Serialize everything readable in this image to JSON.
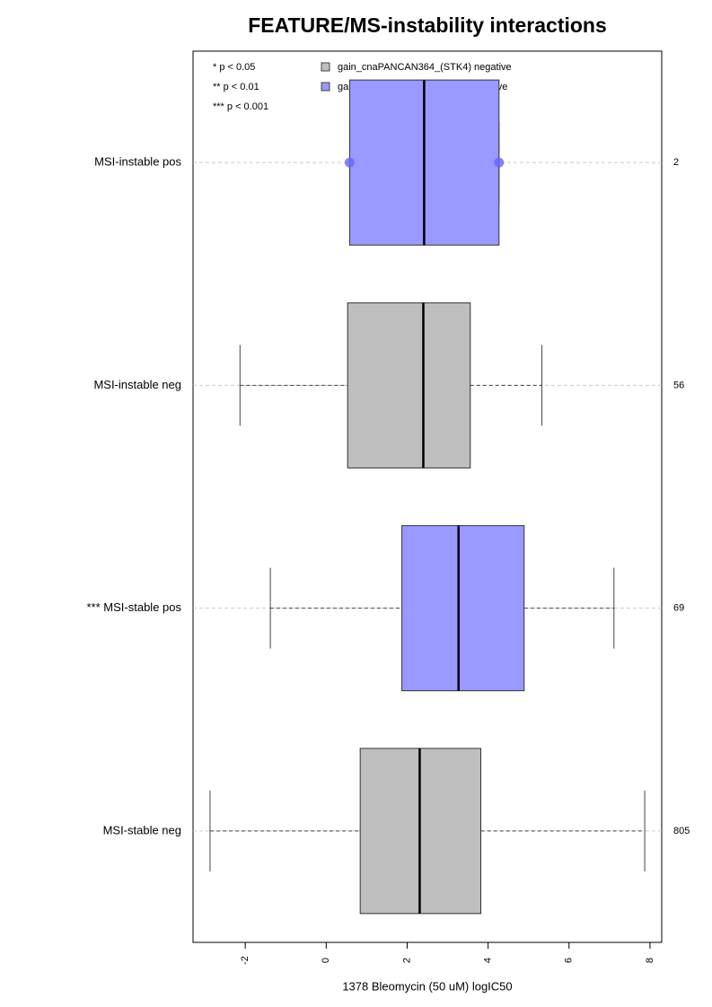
{
  "chart_data": {
    "type": "boxplot",
    "title": "FEATURE/MS-instability interactions",
    "x_label": "1378 Bleomycin (50 uM) logIC50",
    "xlim": [
      -3.29,
      8.29
    ],
    "xticks": [
      -2,
      0,
      2,
      4,
      6,
      8
    ],
    "notes": [
      "* p < 0.05",
      "** p < 0.01",
      "*** p < 0.001"
    ],
    "series": [
      {
        "name": "gain_cnaPANCAN364_(STK4) negative",
        "color": "#bebebe"
      },
      {
        "name": "gain_cnaPANCAN364_(STK4) positive",
        "color": "#9999ff"
      }
    ],
    "groups": [
      {
        "label": "MSI-instable pos",
        "n": 2,
        "color": "#9999ff",
        "min": 0.58,
        "q1": 0.58,
        "median": 2.42,
        "q3": 4.27,
        "max": 4.27,
        "points": [
          0.58,
          4.27
        ]
      },
      {
        "label": "MSI-instable neg",
        "n": 56,
        "color": "#bebebe",
        "min": -2.13,
        "q1": 0.53,
        "median": 2.4,
        "q3": 3.56,
        "max": 5.33
      },
      {
        "label": "*** MSI-stable pos",
        "n": 69,
        "color": "#9999ff",
        "min": -1.38,
        "q1": 1.87,
        "median": 3.27,
        "q3": 4.89,
        "max": 7.11
      },
      {
        "label": "MSI-stable neg",
        "n": 805,
        "color": "#bebebe",
        "min": -2.87,
        "q1": 0.84,
        "median": 2.31,
        "q3": 3.82,
        "max": 7.87
      }
    ]
  }
}
